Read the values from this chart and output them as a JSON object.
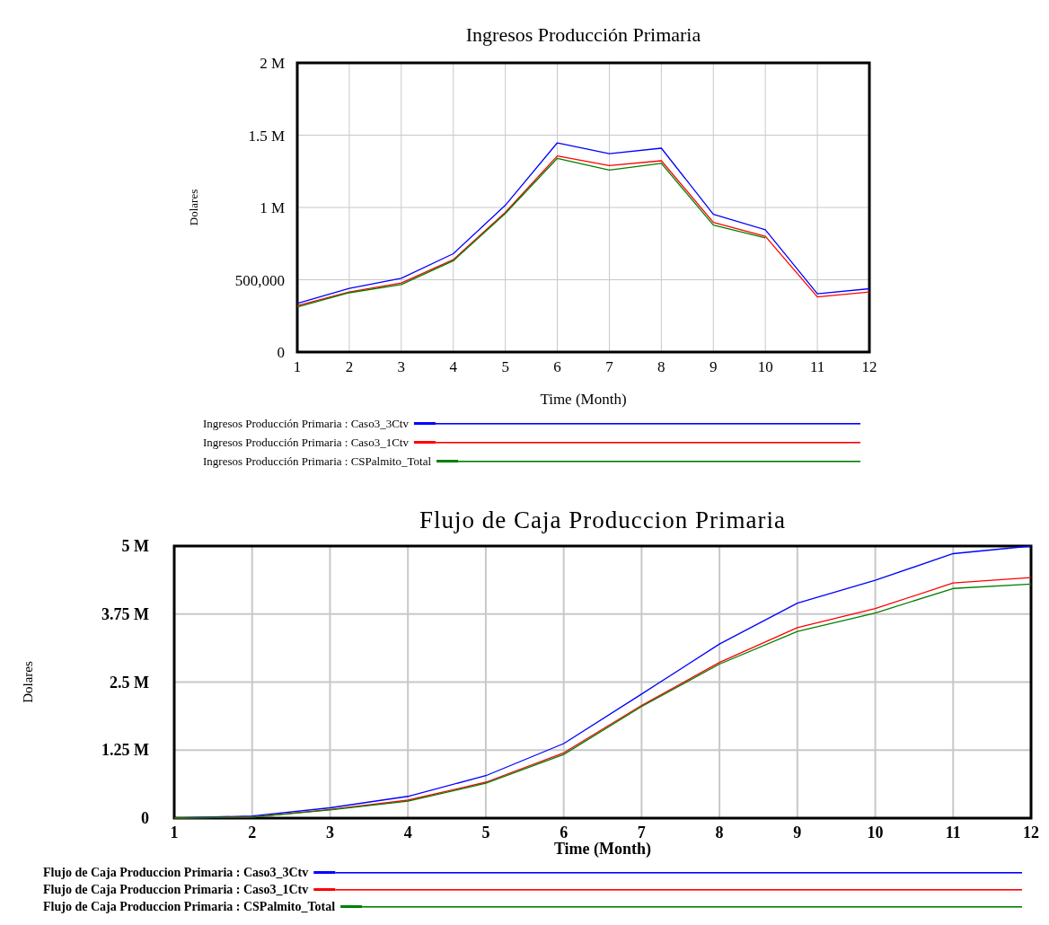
{
  "chart_data": [
    {
      "type": "line",
      "title": "Ingresos Producción Primaria",
      "xlabel": "Time (Month)",
      "ylabel": "Dolares",
      "x": [
        1,
        2,
        3,
        4,
        5,
        6,
        7,
        8,
        9,
        10,
        11,
        12
      ],
      "xlim": [
        1,
        12
      ],
      "xticks": [
        1,
        2,
        3,
        4,
        5,
        6,
        7,
        8,
        9,
        10,
        11,
        12
      ],
      "ylim": [
        0,
        2000000
      ],
      "yticks": [
        {
          "value": 0,
          "label": "0"
        },
        {
          "value": 500000,
          "label": "500,000"
        },
        {
          "value": 1000000,
          "label": "1 M"
        },
        {
          "value": 1500000,
          "label": "1.5 M"
        },
        {
          "value": 2000000,
          "label": "2 M"
        }
      ],
      "grid": true,
      "legend": "bottom",
      "series": [
        {
          "name": "Ingresos Producción Primaria : Caso3_3Ctv",
          "color": "#0000ff",
          "values": [
            336000,
            440000,
            510000,
            680000,
            1015000,
            1447000,
            1372000,
            1410000,
            953000,
            846000,
            403000,
            438000
          ]
        },
        {
          "name": "Ingresos Producción Primaria : Caso3_1Ctv",
          "color": "#ff0000",
          "values": [
            320000,
            416000,
            478000,
            639000,
            966000,
            1356000,
            1289000,
            1323000,
            897000,
            800000,
            381000,
            416000
          ]
        },
        {
          "name": "Ingresos Producción Primaria : CSPalmito_Total",
          "color": "#008000",
          "values": [
            311000,
            410000,
            467000,
            631000,
            958000,
            1340000,
            1259000,
            1305000,
            878000,
            789000,
            null,
            null
          ]
        }
      ]
    },
    {
      "type": "line",
      "title": "Flujo de Caja Produccion Primaria",
      "xlabel": "Time (Month)",
      "ylabel": "Dolares",
      "x": [
        1,
        2,
        3,
        4,
        5,
        6,
        7,
        8,
        9,
        10,
        11,
        12
      ],
      "xlim": [
        1,
        12
      ],
      "xticks": [
        1,
        2,
        3,
        4,
        5,
        6,
        7,
        8,
        9,
        10,
        11,
        12
      ],
      "ylim": [
        0,
        5000000
      ],
      "yticks": [
        {
          "value": 0,
          "label": "0"
        },
        {
          "value": 1250000,
          "label": "1.25 M"
        },
        {
          "value": 2500000,
          "label": "2.5 M"
        },
        {
          "value": 3750000,
          "label": "3.75 M"
        },
        {
          "value": 5000000,
          "label": "5 M"
        }
      ],
      "grid": true,
      "legend": "bottom",
      "series": [
        {
          "name": "Flujo de Caja Produccion Primaria : Caso3_3Ctv",
          "color": "#0000ff",
          "values": [
            0,
            40000,
            190000,
            400000,
            780000,
            1370000,
            2280000,
            3200000,
            3950000,
            4370000,
            4860000,
            5000000
          ]
        },
        {
          "name": "Flujo de Caja Produccion Primaria : Caso3_1Ctv",
          "color": "#ff0000",
          "values": [
            0,
            20000,
            160000,
            330000,
            660000,
            1200000,
            2070000,
            2860000,
            3500000,
            3850000,
            4320000,
            4420000
          ]
        },
        {
          "name": "Flujo de Caja Produccion Primaria : CSPalmito_Total",
          "color": "#008000",
          "values": [
            0,
            20000,
            150000,
            310000,
            640000,
            1170000,
            2050000,
            2830000,
            3430000,
            3770000,
            4220000,
            4300000
          ]
        }
      ]
    }
  ]
}
